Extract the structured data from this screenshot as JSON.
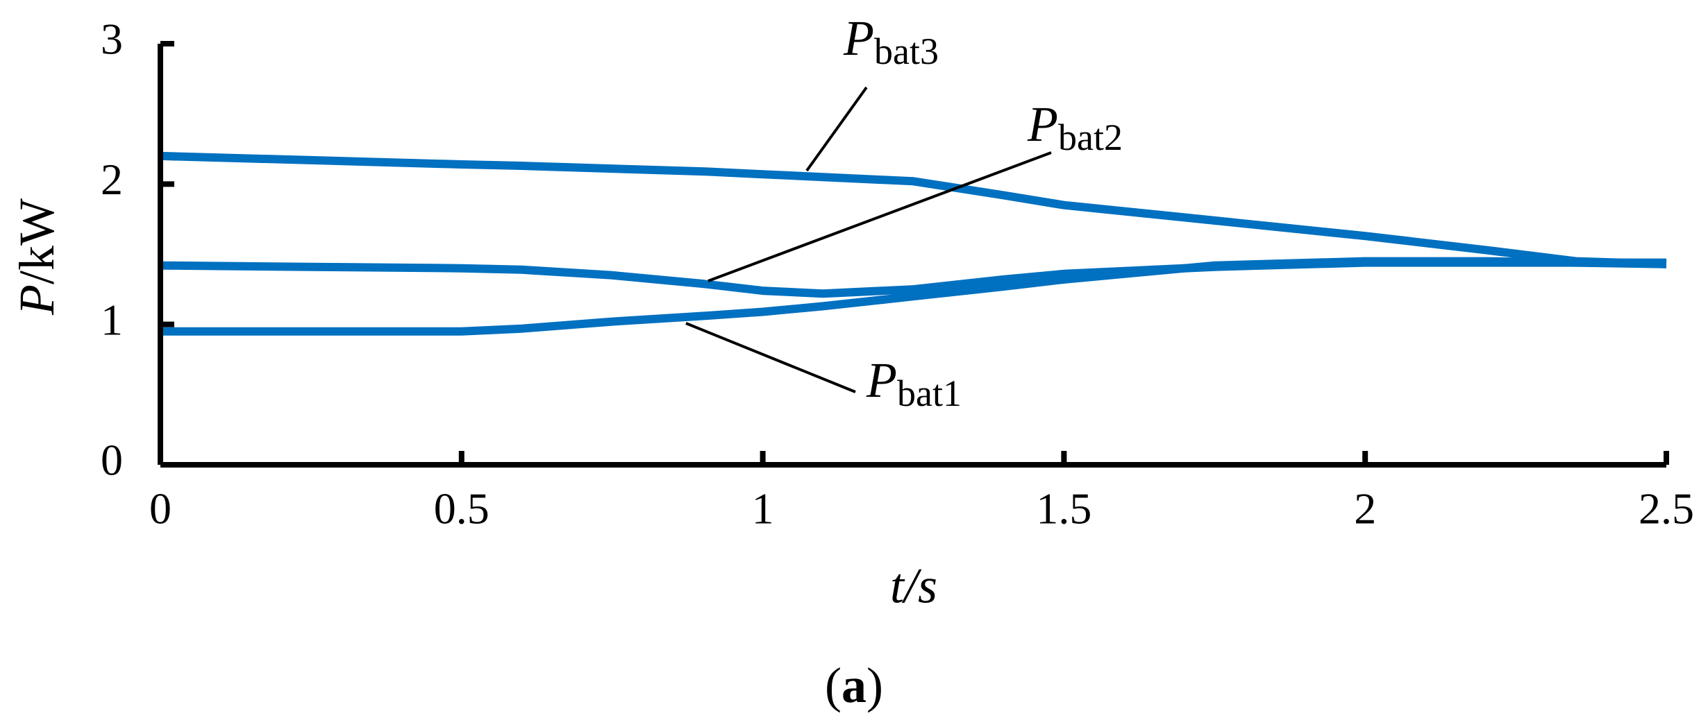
{
  "chart_data": {
    "type": "line",
    "xlabel": "t/s",
    "ylabel": {
      "symbol": "P",
      "unit": "/kW"
    },
    "caption": [
      "(",
      "a",
      ")"
    ],
    "x": [
      0,
      0.25,
      0.5,
      0.6,
      0.75,
      0.9,
      1,
      1.1,
      1.25,
      1.4,
      1.5,
      1.75,
      2,
      2.2,
      2.35,
      2.5
    ],
    "series": [
      {
        "label_symbol": "P",
        "label_subscript": "bat3",
        "color": "#0070c0",
        "values": [
          2.2,
          2.17,
          2.14,
          2.13,
          2.11,
          2.09,
          2.07,
          2.05,
          2.02,
          1.92,
          1.85,
          1.74,
          1.63,
          1.53,
          1.45,
          1.43
        ]
      },
      {
        "label_symbol": "P",
        "label_subscript": "bat2",
        "color": "#0070c0",
        "values": [
          1.42,
          1.41,
          1.4,
          1.39,
          1.35,
          1.29,
          1.24,
          1.22,
          1.25,
          1.32,
          1.36,
          1.41,
          1.44,
          1.44,
          1.44,
          1.44
        ]
      },
      {
        "label_symbol": "P",
        "label_subscript": "bat1",
        "color": "#0070c0",
        "values": [
          0.95,
          0.95,
          0.95,
          0.97,
          1.02,
          1.06,
          1.09,
          1.13,
          1.2,
          1.27,
          1.32,
          1.42,
          1.45,
          1.45,
          1.44,
          1.43
        ]
      }
    ],
    "xlim": [
      0,
      2.5
    ],
    "xticks": [
      0,
      0.5,
      1,
      1.5,
      2,
      2.5
    ],
    "ylim": [
      0,
      3
    ],
    "yticks": [
      0,
      1,
      2,
      3
    ],
    "grid": false
  }
}
